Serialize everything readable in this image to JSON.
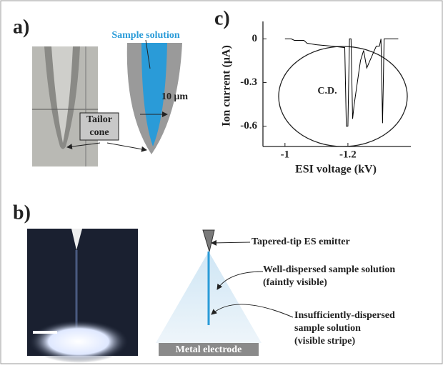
{
  "panel_labels": [
    "a)",
    "b)",
    "c)"
  ],
  "panel_a": {
    "sample_solution": "Sample solution",
    "scale": "10 μm",
    "tailor_cone": [
      "Tailor",
      "cone"
    ]
  },
  "panel_b": {
    "emitter": "Tapered-tip ES emitter",
    "well_dispersed": [
      "Well-dispersed sample solution",
      "(faintly visible)"
    ],
    "insufficient": [
      "Insufficiently-dispersed",
      "sample solution",
      "(visible stripe)"
    ],
    "electrode": "Metal electrode"
  },
  "chart_data": {
    "type": "line",
    "color": "#000000",
    "x_label": "ESI voltage (kV)",
    "y_label": "Ion current (μA)",
    "annotation": "C.D.",
    "x": [
      -1.0,
      -1.02,
      -1.03,
      -1.06,
      -1.07,
      -1.1,
      -1.15,
      -1.19,
      -1.195,
      -1.2,
      -1.205,
      -1.21,
      -1.215,
      -1.22,
      -1.24,
      -1.25,
      -1.26,
      -1.27,
      -1.28,
      -1.29,
      -1.3,
      -1.305,
      -1.31,
      -1.315,
      -1.33,
      -1.36
    ],
    "values": [
      0,
      0,
      -0.01,
      -0.01,
      -0.03,
      -0.04,
      -0.05,
      -0.06,
      -0.6,
      -0.6,
      0,
      0,
      -0.55,
      -0.45,
      -0.15,
      -0.08,
      -0.2,
      -0.15,
      -0.1,
      -0.05,
      -0.05,
      0,
      -0.58,
      0,
      0,
      0
    ],
    "xlim": [
      -0.93,
      -1.4
    ],
    "xticks": [
      -1.0,
      -1.2
    ],
    "ylim": [
      -0.74,
      0.12
    ],
    "yticks": [
      0,
      -0.3,
      -0.6
    ]
  }
}
